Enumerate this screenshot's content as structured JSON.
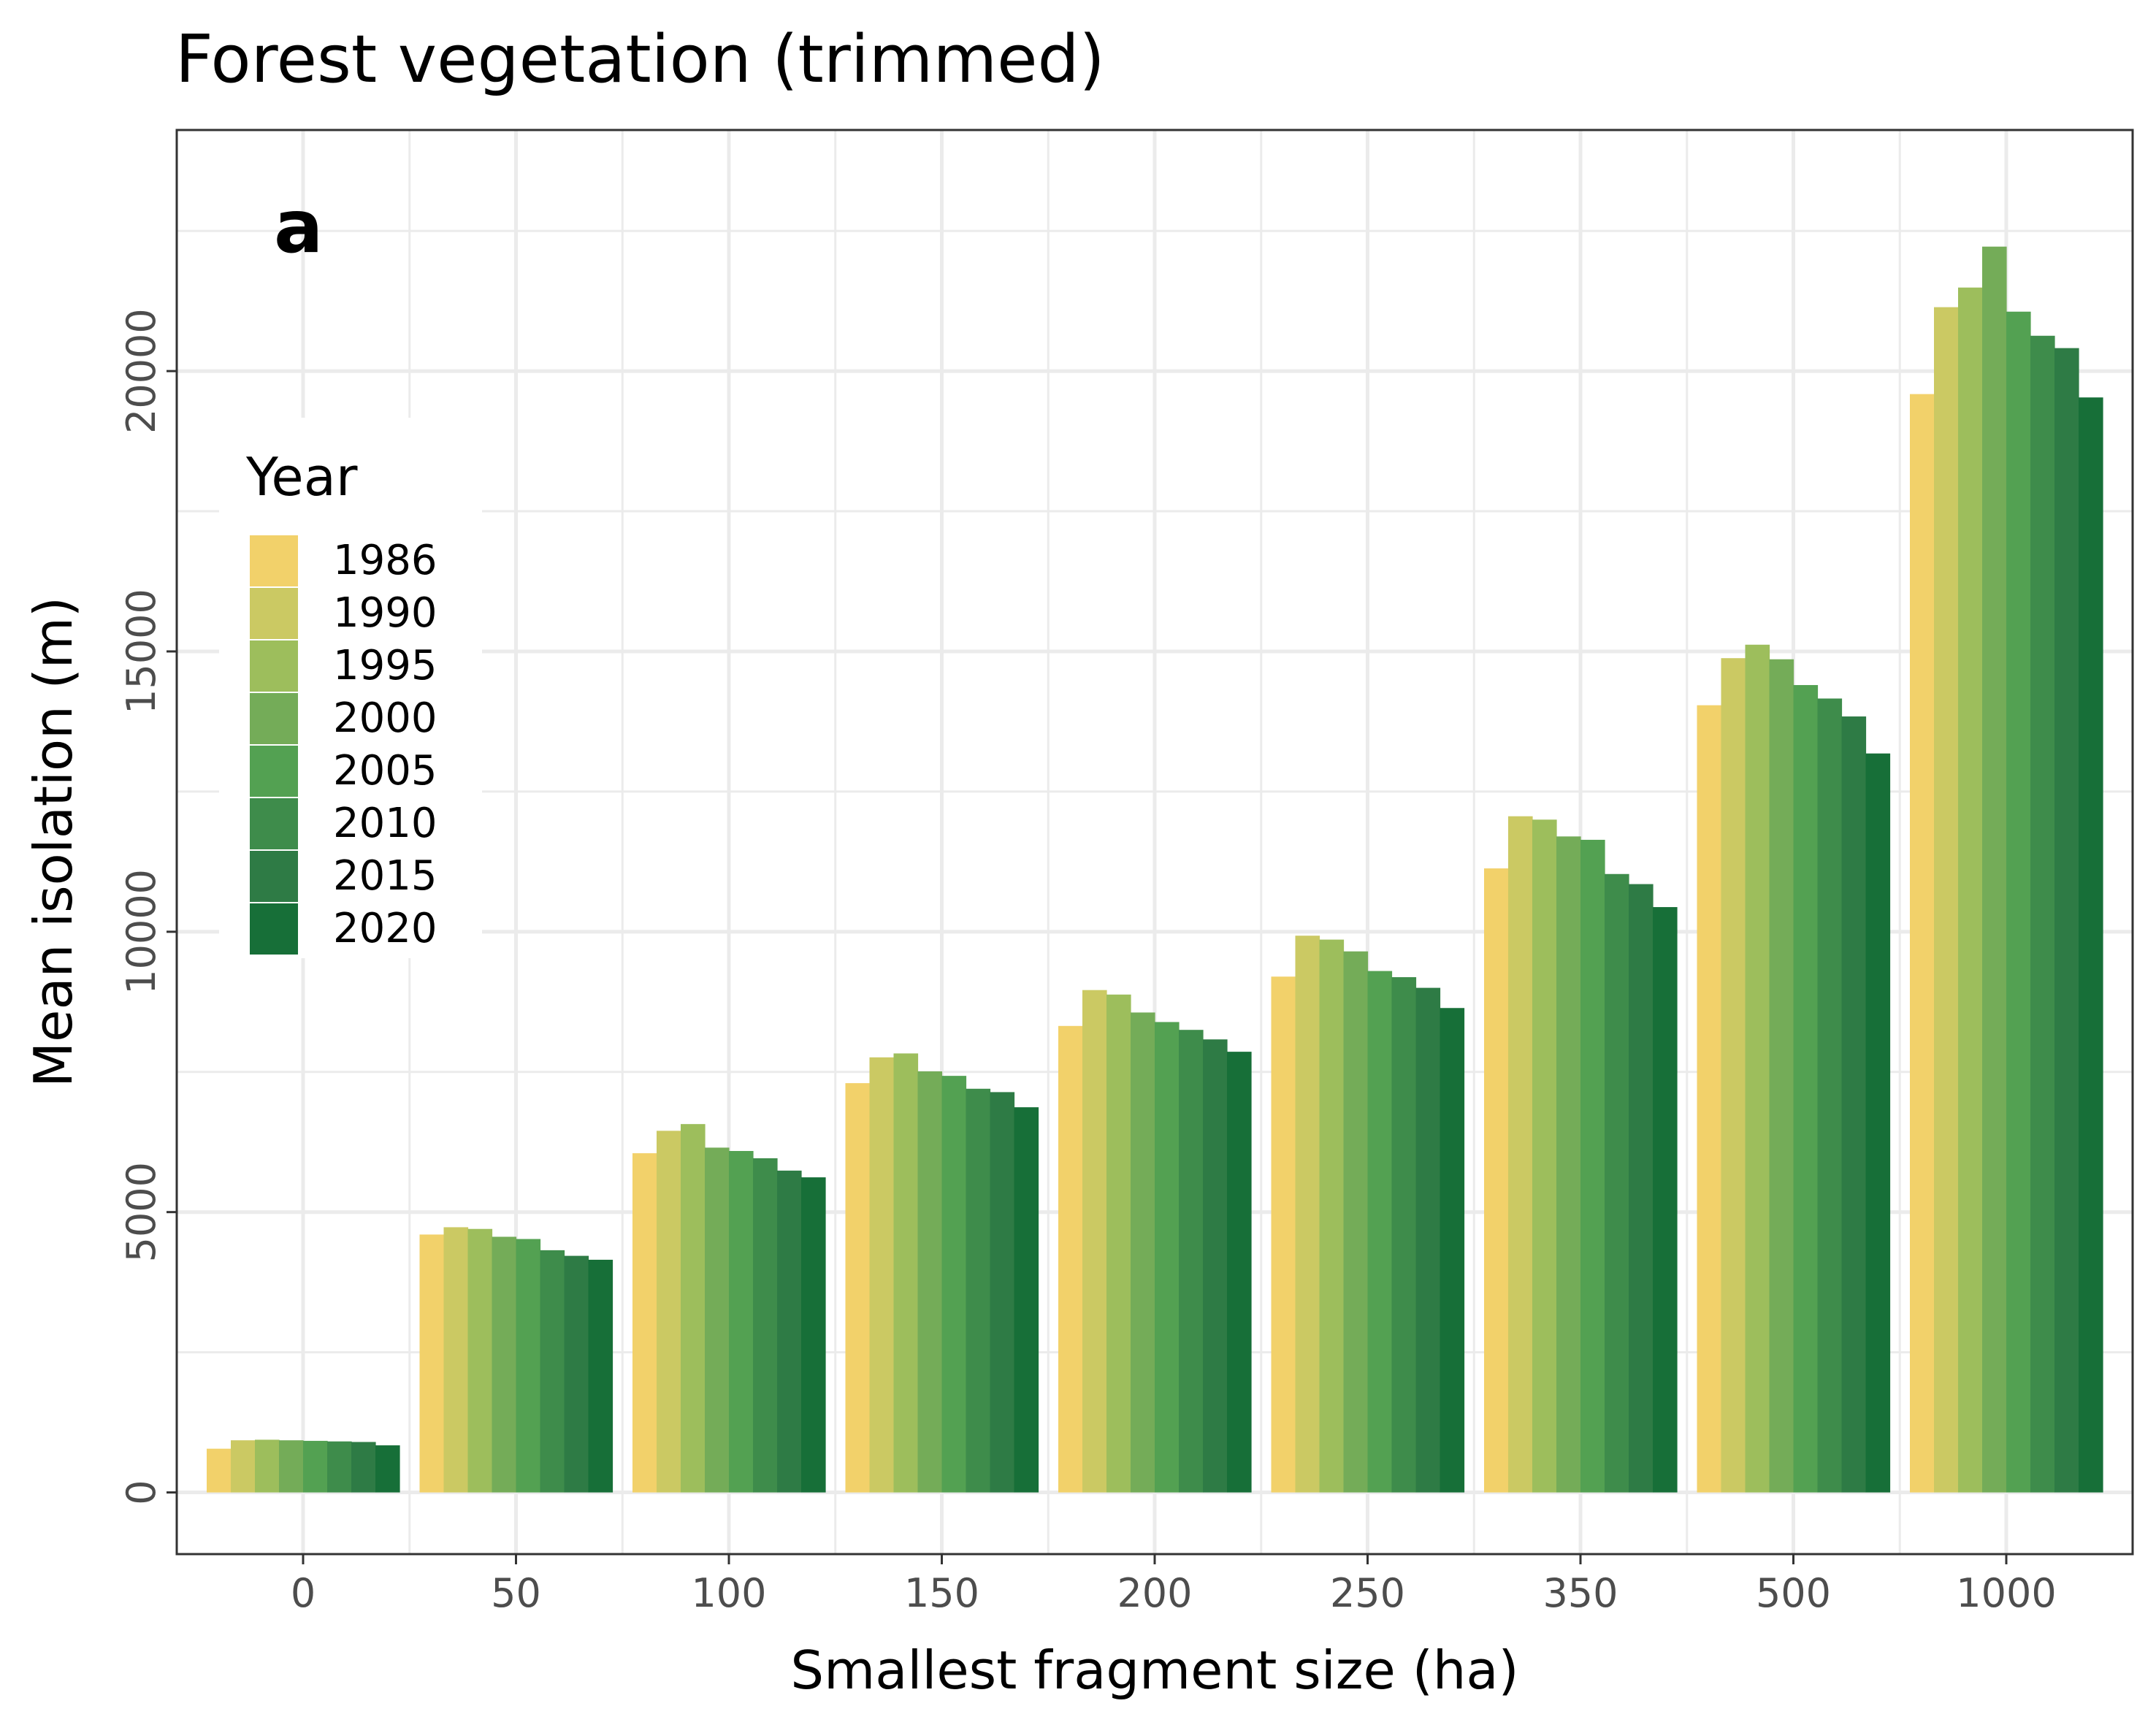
{
  "chart_data": {
    "type": "bar",
    "title": "Forest vegetation (trimmed)",
    "panel_label": "a",
    "xlabel": "Smallest fragment size (ha)",
    "ylabel": "Mean isolation (m)",
    "categories": [
      "0",
      "50",
      "100",
      "150",
      "200",
      "250",
      "350",
      "500",
      "1000"
    ],
    "ylim": [
      -1100,
      24300
    ],
    "yticks": [
      0,
      5000,
      10000,
      15000,
      20000
    ],
    "ytick_labels": [
      "0",
      "5000",
      "10000",
      "15000",
      "20000"
    ],
    "grid": true,
    "legend_position": "left, inside plot",
    "legend_title": "Year",
    "series": [
      {
        "name": "1986",
        "color": "#f2d16a",
        "values": [
          780,
          4600,
          6050,
          7300,
          8320,
          9200,
          11130,
          14040,
          19590
        ]
      },
      {
        "name": "1990",
        "color": "#cbc963",
        "values": [
          930,
          4730,
          6450,
          7760,
          8960,
          9930,
          12060,
          14880,
          21140
        ]
      },
      {
        "name": "1995",
        "color": "#9dbe5c",
        "values": [
          940,
          4700,
          6570,
          7830,
          8880,
          9860,
          12000,
          15120,
          21490
        ]
      },
      {
        "name": "2000",
        "color": "#74ac58",
        "values": [
          930,
          4560,
          6150,
          7510,
          8560,
          9650,
          11700,
          14860,
          22220
        ]
      },
      {
        "name": "2005",
        "color": "#53a152",
        "values": [
          920,
          4520,
          6090,
          7430,
          8390,
          9300,
          11640,
          14400,
          21060
        ]
      },
      {
        "name": "2010",
        "color": "#3e8c4b",
        "values": [
          910,
          4320,
          5960,
          7200,
          8250,
          9190,
          11030,
          14160,
          20630
        ]
      },
      {
        "name": "2015",
        "color": "#2e7b45",
        "values": [
          900,
          4220,
          5740,
          7140,
          8080,
          9000,
          10850,
          13840,
          20410
        ]
      },
      {
        "name": "2020",
        "color": "#176f38",
        "values": [
          840,
          4150,
          5620,
          6870,
          7860,
          8640,
          10440,
          13180,
          19530
        ]
      }
    ]
  }
}
